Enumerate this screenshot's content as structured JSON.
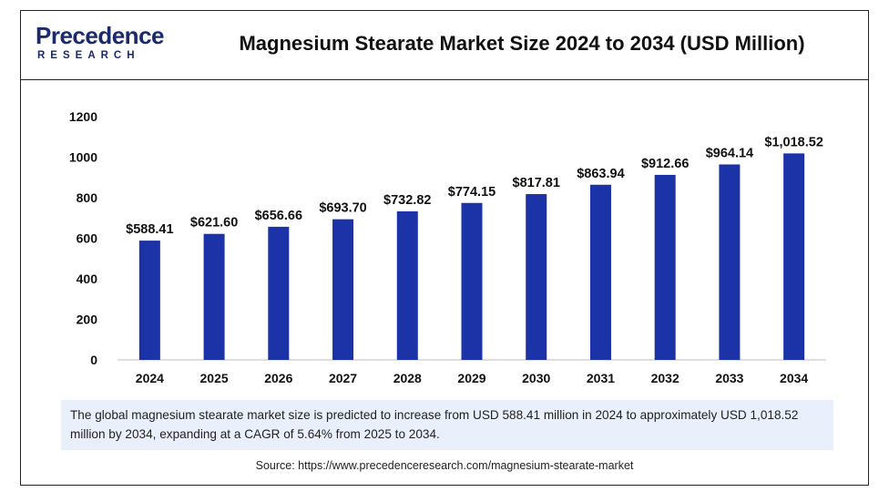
{
  "brand": {
    "name": "Precedence",
    "sub": "RESEARCH"
  },
  "title": "Magnesium Stearate Market Size 2024 to 2034 (USD Million)",
  "summary": "The global magnesium stearate market size is predicted to increase from USD 588.41 million in 2024 to approximately USD 1,018.52 million by 2034, expanding at a CAGR of 5.64% from 2025 to 2034.",
  "source": "Source: https://www.precedenceresearch.com/magnesium-stearate-market",
  "chart_data": {
    "type": "bar",
    "title": "Magnesium Stearate Market Size 2024 to 2034 (USD Million)",
    "xlabel": "",
    "ylabel": "",
    "categories": [
      "2024",
      "2025",
      "2026",
      "2027",
      "2028",
      "2029",
      "2030",
      "2031",
      "2032",
      "2033",
      "2034"
    ],
    "values": [
      588.41,
      621.6,
      656.66,
      693.7,
      732.82,
      774.15,
      817.81,
      863.94,
      912.66,
      964.14,
      1018.52
    ],
    "data_labels": [
      "$588.41",
      "$621.60",
      "$656.66",
      "$693.70",
      "$732.82",
      "$774.15",
      "$817.81",
      "$863.94",
      "$912.66",
      "$964.14",
      "$1,018.52"
    ],
    "ylim": [
      0,
      1200
    ],
    "yticks": [
      0,
      200,
      400,
      600,
      800,
      1000,
      1200
    ],
    "ytick_labels": [
      "0",
      "200",
      "400",
      "600",
      "800",
      "1000",
      "1200"
    ],
    "grid": false,
    "bar_color": "#1b33a6"
  }
}
